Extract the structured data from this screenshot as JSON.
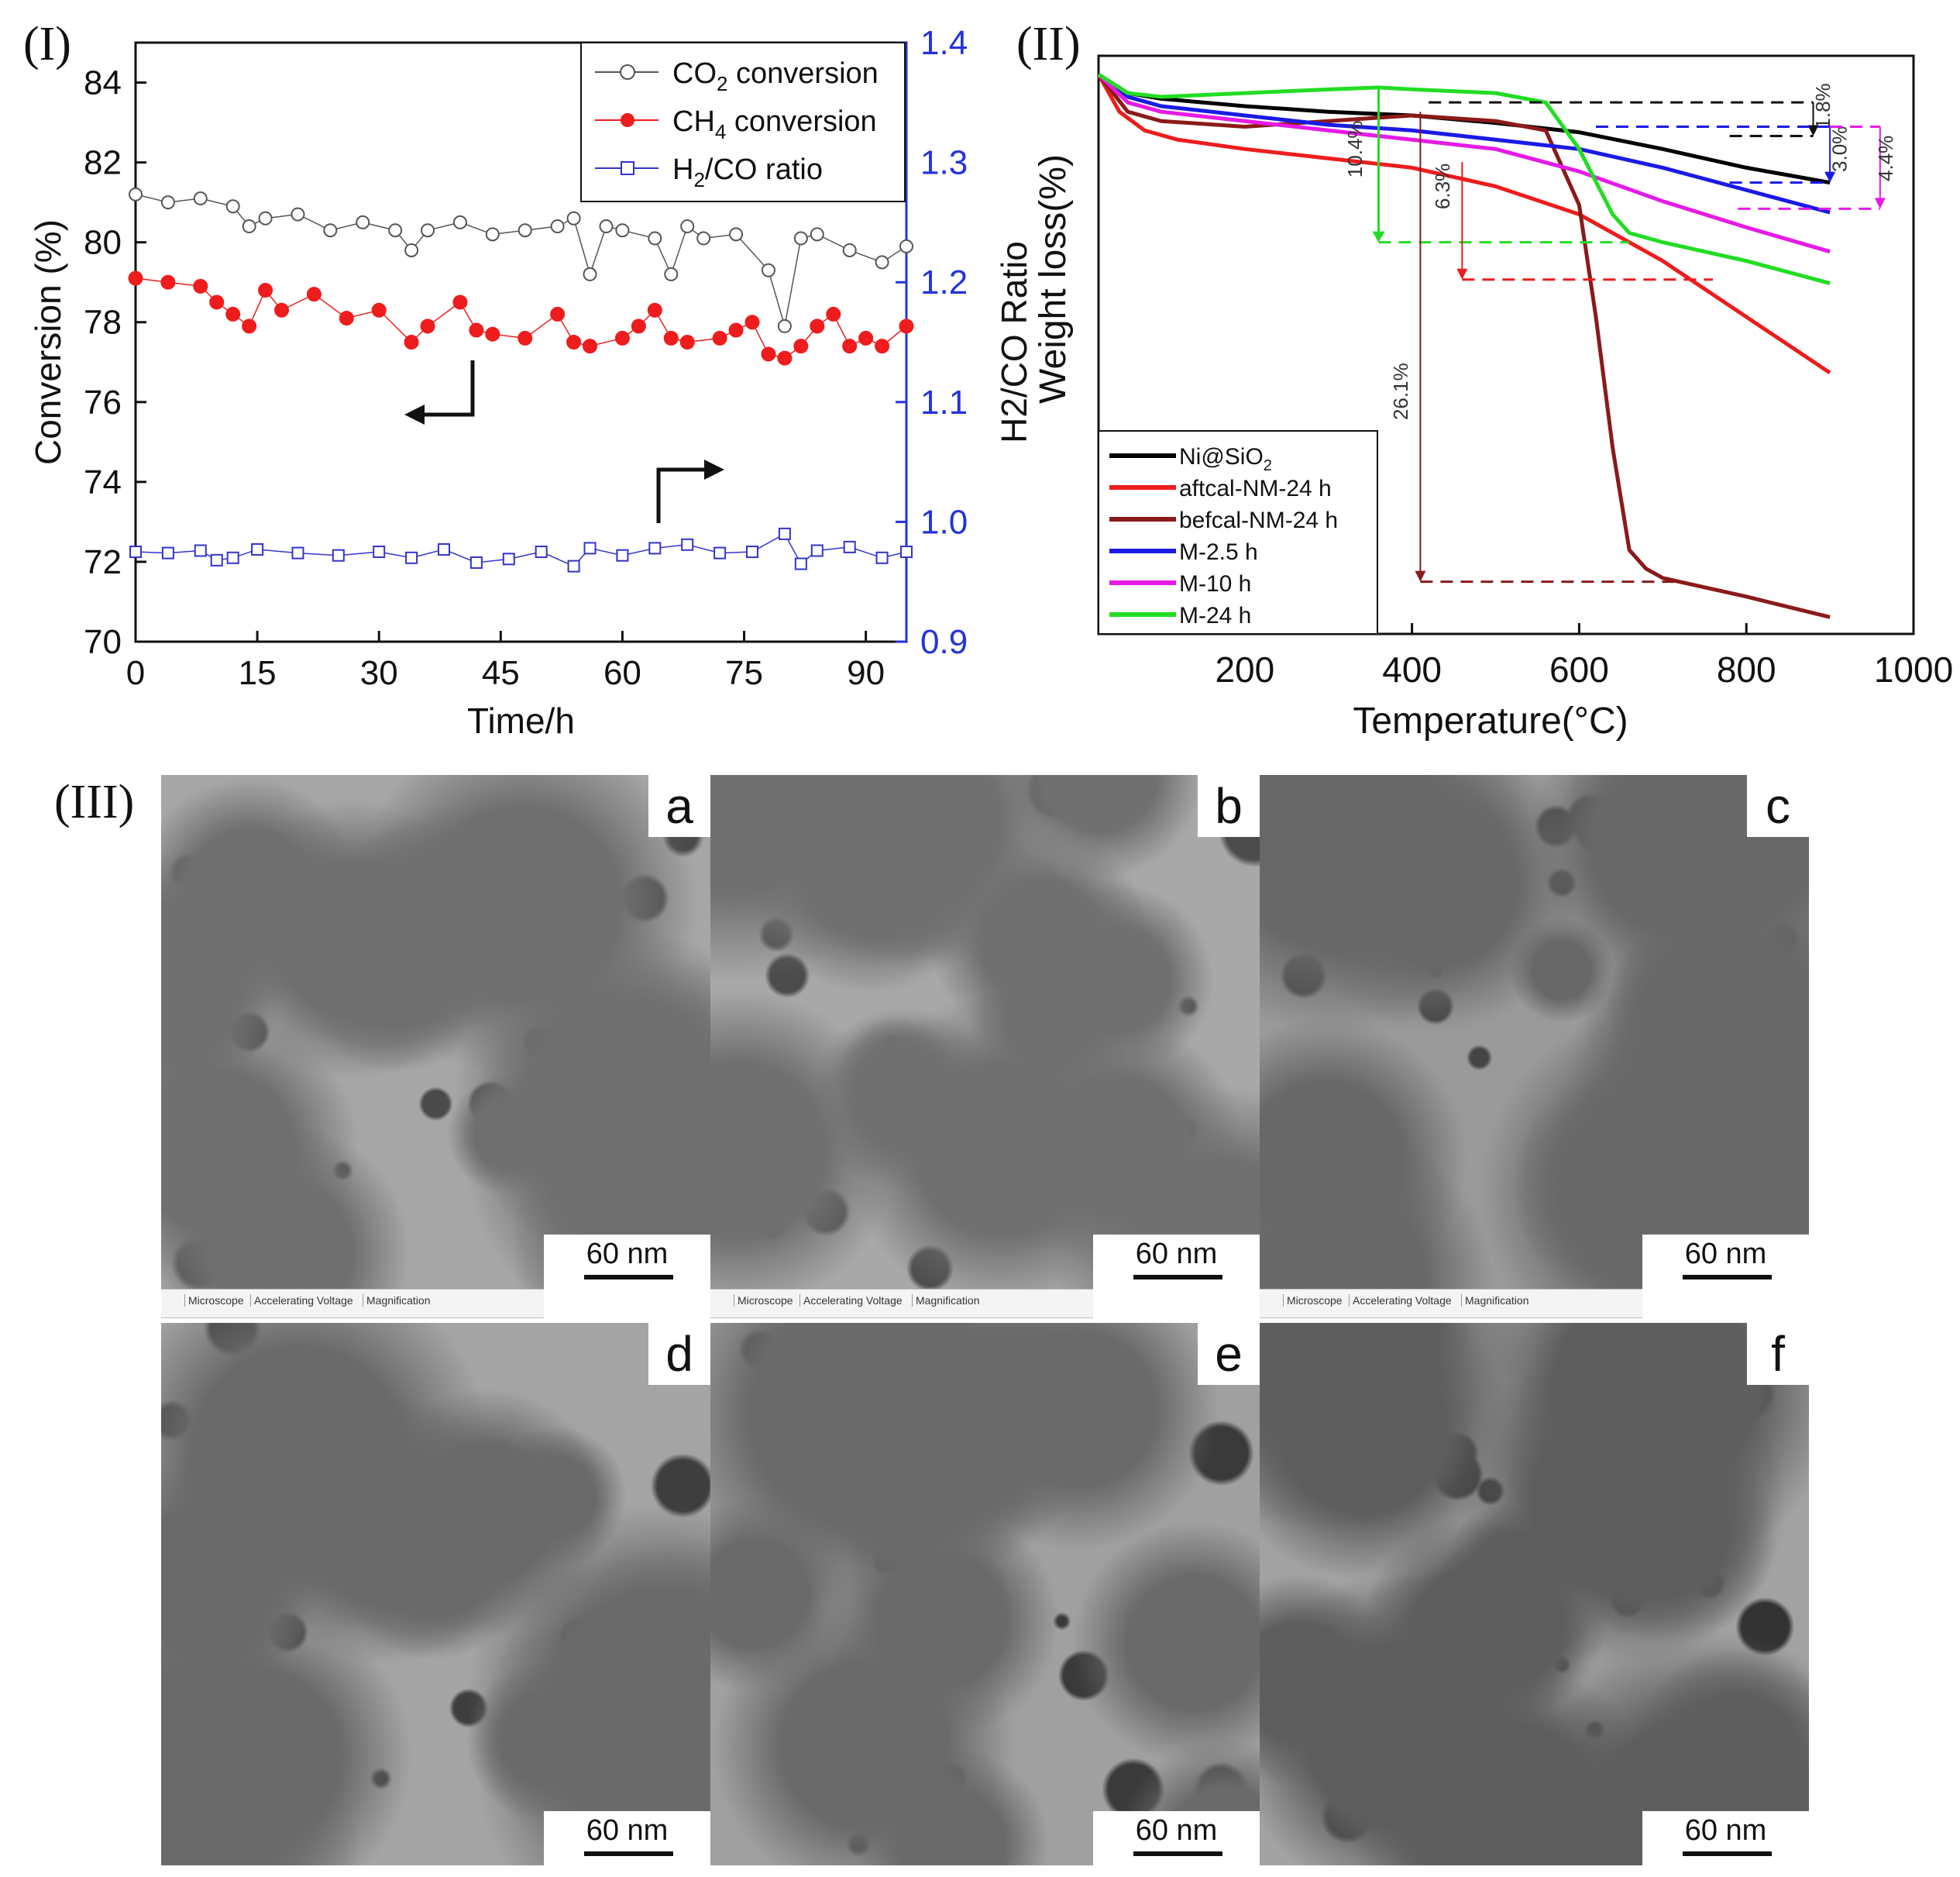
{
  "panels": {
    "one": "(I)",
    "two": "(II)",
    "three": "(III)"
  },
  "chart_data": [
    {
      "id": "I",
      "type": "scatter",
      "xlabel": "Time/h",
      "ylabel": "Conversion (%)",
      "y2label": "H2/CO Ratio",
      "xlim": [
        0,
        95
      ],
      "ylim": [
        70,
        85
      ],
      "y2lim": [
        0.9,
        1.4
      ],
      "xticks": [
        "0",
        "15",
        "30",
        "45",
        "60",
        "75",
        "90"
      ],
      "yticks": [
        "70",
        "72",
        "74",
        "76",
        "78",
        "80",
        "82",
        "84"
      ],
      "y2ticks": [
        "0.9",
        "1.0",
        "1.1",
        "1.2",
        "1.3",
        "1.4"
      ],
      "legend_position": "top-right",
      "series": [
        {
          "name": "CO2 conversion",
          "axis": "left",
          "marker": "open-circle",
          "color": "#555555",
          "x": [
            0,
            4,
            8,
            12,
            14,
            16,
            20,
            24,
            28,
            32,
            34,
            36,
            40,
            44,
            48,
            52,
            54,
            56,
            58,
            60,
            64,
            66,
            68,
            70,
            74,
            78,
            80,
            82,
            84,
            88,
            92,
            95
          ],
          "y": [
            81.2,
            81.0,
            81.1,
            80.9,
            80.4,
            80.6,
            80.7,
            80.3,
            80.5,
            80.3,
            79.8,
            80.3,
            80.5,
            80.2,
            80.3,
            80.4,
            80.6,
            79.2,
            80.4,
            80.3,
            80.1,
            79.2,
            80.4,
            80.1,
            80.2,
            79.3,
            77.9,
            80.1,
            80.2,
            79.8,
            79.5,
            79.9
          ]
        },
        {
          "name": "CH4 conversion",
          "axis": "left",
          "marker": "filled-circle",
          "color": "#ee1c1c",
          "x": [
            0,
            4,
            8,
            10,
            12,
            14,
            16,
            18,
            22,
            26,
            30,
            34,
            36,
            40,
            42,
            44,
            48,
            52,
            54,
            56,
            60,
            62,
            64,
            66,
            68,
            72,
            74,
            76,
            78,
            80,
            82,
            84,
            86,
            88,
            90,
            92,
            95
          ],
          "y": [
            79.1,
            79.0,
            78.9,
            78.5,
            78.2,
            77.9,
            78.8,
            78.3,
            78.7,
            78.1,
            78.3,
            77.5,
            77.9,
            78.5,
            77.8,
            77.7,
            77.6,
            78.2,
            77.5,
            77.4,
            77.6,
            77.9,
            78.3,
            77.6,
            77.5,
            77.6,
            77.8,
            78.0,
            77.2,
            77.1,
            77.4,
            77.9,
            78.2,
            77.4,
            77.6,
            77.4,
            77.9
          ]
        },
        {
          "name": "H2/CO ratio",
          "axis": "right",
          "marker": "open-square",
          "color": "#3333cc",
          "x": [
            0,
            4,
            8,
            10,
            12,
            15,
            20,
            25,
            30,
            34,
            38,
            42,
            46,
            50,
            54,
            56,
            60,
            64,
            68,
            72,
            76,
            80,
            82,
            84,
            88,
            92,
            95
          ],
          "y": [
            0.975,
            0.974,
            0.976,
            0.968,
            0.97,
            0.977,
            0.974,
            0.972,
            0.975,
            0.97,
            0.977,
            0.966,
            0.969,
            0.975,
            0.963,
            0.978,
            0.972,
            0.978,
            0.981,
            0.974,
            0.975,
            0.99,
            0.965,
            0.976,
            0.979,
            0.97,
            0.975
          ]
        }
      ]
    },
    {
      "id": "II",
      "type": "line",
      "xlabel": "Temperature(°C)",
      "ylabel": "Weight loss(%)",
      "xlim": [
        25,
        1000
      ],
      "ylim": [
        70,
        101
      ],
      "xticks": [
        "200",
        "400",
        "600",
        "800",
        "1000"
      ],
      "legend_position": "bottom-left",
      "series": [
        {
          "name": "Ni@SiO2",
          "color": "#000000",
          "x": [
            25,
            60,
            100,
            200,
            300,
            400,
            500,
            600,
            700,
            800,
            900
          ],
          "y": [
            100,
            99.0,
            98.7,
            98.3,
            98.0,
            97.8,
            97.4,
            96.9,
            96.0,
            95.0,
            94.2
          ]
        },
        {
          "name": "aftcal-NM-24 h",
          "color": "#ee1c1c",
          "x": [
            25,
            50,
            80,
            120,
            200,
            300,
            400,
            500,
            600,
            700,
            800,
            900
          ],
          "y": [
            100,
            98.0,
            97.0,
            96.5,
            96.0,
            95.5,
            95.0,
            94.0,
            92.5,
            90.0,
            87.0,
            84.0
          ]
        },
        {
          "name": "befcal-NM-24 h",
          "color": "#8b1a1a",
          "x": [
            25,
            60,
            100,
            200,
            300,
            400,
            500,
            560,
            600,
            620,
            640,
            660,
            680,
            700,
            800,
            900
          ],
          "y": [
            100,
            98.0,
            97.5,
            97.2,
            97.5,
            97.8,
            97.5,
            97.0,
            93.0,
            87.0,
            80.0,
            74.5,
            73.5,
            73.0,
            72.0,
            70.9
          ]
        },
        {
          "name": "M-2.5 h",
          "color": "#1a1ae6",
          "x": [
            25,
            60,
            100,
            200,
            300,
            400,
            500,
            600,
            700,
            800,
            900
          ],
          "y": [
            100,
            98.8,
            98.3,
            97.8,
            97.3,
            97.0,
            96.5,
            96.0,
            95.0,
            93.8,
            92.6
          ]
        },
        {
          "name": "M-10 h",
          "color": "#e61ae6",
          "x": [
            25,
            60,
            100,
            200,
            300,
            400,
            500,
            600,
            700,
            800,
            900
          ],
          "y": [
            100,
            98.5,
            98.0,
            97.5,
            97.0,
            96.5,
            96.0,
            94.8,
            93.2,
            91.8,
            90.5
          ]
        },
        {
          "name": "M-24 h",
          "color": "#22dd22",
          "x": [
            25,
            60,
            100,
            200,
            300,
            360,
            400,
            500,
            560,
            600,
            640,
            660,
            700,
            800,
            900
          ],
          "y": [
            100,
            99.0,
            98.8,
            99.0,
            99.2,
            99.3,
            99.2,
            99.0,
            98.5,
            96.0,
            92.5,
            91.5,
            91.0,
            90.0,
            88.8
          ]
        }
      ],
      "annotations": [
        "1.8%",
        "3.0%",
        "4.4%",
        "10.4%",
        "6.3%",
        "26.1%"
      ]
    }
  ],
  "tem_images": [
    {
      "letter": "a",
      "scale": "60 nm"
    },
    {
      "letter": "b",
      "scale": "60 nm"
    },
    {
      "letter": "c",
      "scale": "60 nm"
    },
    {
      "letter": "d",
      "scale": "60 nm"
    },
    {
      "letter": "e",
      "scale": "60 nm"
    },
    {
      "letter": "f",
      "scale": "60 nm"
    }
  ],
  "info_strip": {
    "microscope": "Microscope",
    "voltage": "Accelerating Voltage",
    "magnification": "Magnification"
  }
}
